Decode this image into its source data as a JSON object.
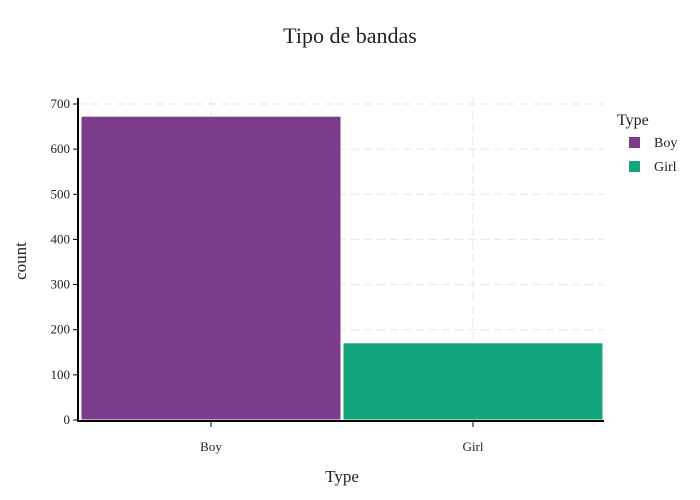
{
  "chart_data": {
    "type": "bar",
    "title": "Tipo de bandas",
    "xlabel": "Type",
    "ylabel": "count",
    "categories": [
      "Boy",
      "Girl"
    ],
    "values": [
      673,
      171
    ],
    "colors": [
      "#7d3c8b",
      "#13a57b"
    ],
    "ylim": [
      0,
      700
    ],
    "yticks": [
      0,
      100,
      200,
      300,
      400,
      500,
      600,
      700
    ],
    "grid": true,
    "legend": {
      "title": "Type",
      "placement": "top-right",
      "entries": [
        "Boy",
        "Girl"
      ]
    }
  }
}
